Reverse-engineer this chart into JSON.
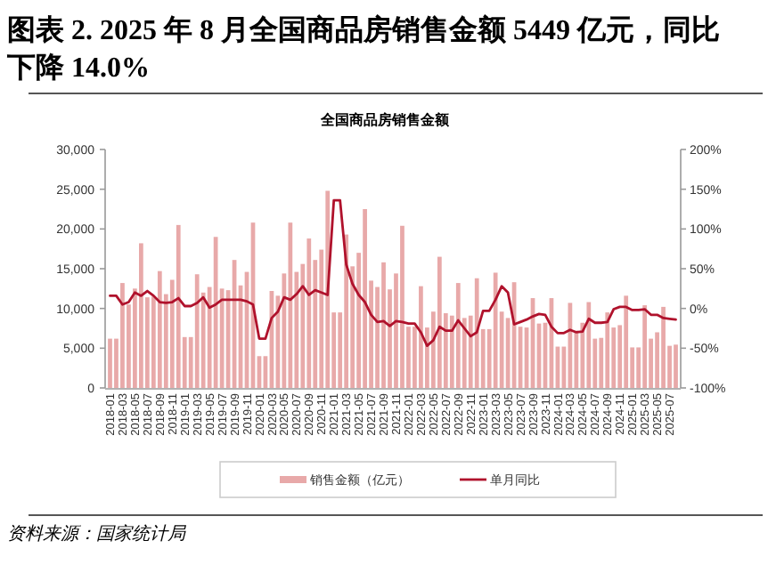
{
  "chart_data": {
    "type": "bar",
    "title": "图表 2. 2025 年 8 月全国商品房销售金额 5449 亿元，同比下降 14.0%",
    "subtitle": "全国商品房销售金额",
    "categories": [
      "2018-01",
      null,
      "2018-03",
      null,
      "2018-05",
      null,
      "2018-07",
      null,
      "2018-09",
      null,
      "2018-11",
      null,
      "2019-01",
      null,
      "2019-03",
      null,
      "2019-05",
      null,
      "2019-07",
      null,
      "2019-09",
      null,
      "2019-11",
      null,
      "2020-01",
      null,
      "2020-03",
      null,
      "2020-05",
      null,
      "2020-07",
      null,
      "2020-09",
      null,
      "2020-11",
      null,
      "2021-01",
      null,
      "2021-03",
      null,
      "2021-05",
      null,
      "2021-07",
      null,
      "2021-09",
      null,
      "2021-11",
      null,
      "2022-01",
      null,
      "2022-03",
      null,
      "2022-05",
      null,
      "2022-07",
      null,
      "2022-09",
      null,
      "2022-11",
      null,
      "2023-01",
      null,
      "2023-03",
      null,
      "2023-05",
      null,
      "2023-07",
      null,
      "2023-09",
      null,
      "2023-11",
      null,
      "2024-01",
      null,
      "2024-03",
      null,
      "2024-05",
      null,
      "2024-07",
      null,
      "2024-09",
      null,
      "2024-11",
      null,
      "2025-01",
      null,
      "2025-03",
      null,
      "2025-05",
      null,
      "2025-07",
      null
    ],
    "series": [
      {
        "name": "销售金额（亿元）",
        "color": "#e8a9a9",
        "values": [
          6200,
          6200,
          13200,
          10500,
          12500,
          18200,
          11400,
          11500,
          14700,
          11800,
          13600,
          20500,
          6400,
          6400,
          14300,
          12000,
          12700,
          19000,
          12500,
          12300,
          16100,
          12900,
          14600,
          20800,
          4000,
          4000,
          12200,
          11600,
          14400,
          20800,
          14600,
          15600,
          18800,
          16100,
          17400,
          24800,
          9500,
          9500,
          19300,
          15300,
          17000,
          22500,
          13500,
          12700,
          15800,
          12400,
          14400,
          20400,
          7700,
          7700,
          12800,
          7600,
          9600,
          16500,
          9400,
          9100,
          13200,
          8800,
          9100,
          13800,
          7400,
          7400,
          14500,
          9600,
          8800,
          13300,
          7700,
          7600,
          11300,
          8100,
          8200,
          11300,
          5200,
          5200,
          10700,
          7200,
          8200,
          10800,
          6200,
          6300,
          9500,
          7600,
          7900,
          11600,
          5100,
          5100,
          10400,
          6200,
          7000,
          10200,
          5300,
          5449
        ]
      },
      {
        "name": "单月同比",
        "type": "line",
        "axis": "y2",
        "color": "#b0122c",
        "values": [
          16,
          16,
          5,
          8,
          20,
          16,
          22,
          16,
          8,
          7,
          8,
          13,
          3,
          3,
          7,
          14,
          1,
          5,
          11,
          11,
          11,
          11,
          9,
          5,
          -38,
          -38,
          -12,
          -4,
          14,
          11,
          18,
          28,
          17,
          23,
          20,
          17,
          136,
          136,
          55,
          31,
          17,
          8,
          -8,
          -17,
          -16,
          -22,
          -16,
          -17,
          -19,
          -19,
          -30,
          -47,
          -40,
          -23,
          -28,
          -28,
          -15,
          -25,
          -35,
          -30,
          -3,
          -3,
          11,
          28,
          20,
          -20,
          -17,
          -14,
          -10,
          -7,
          -8,
          -23,
          -31,
          -31,
          -27,
          -30,
          -29,
          -13,
          -18,
          -18,
          -17,
          -1,
          2,
          2,
          -2,
          -2,
          -1,
          -8,
          -8,
          -12,
          -13,
          -14
        ]
      }
    ],
    "ylim": [
      0,
      30000
    ],
    "yticks": [
      {
        "value": 0,
        "label": "0"
      },
      {
        "value": 5000,
        "label": "5,000"
      },
      {
        "value": 10000,
        "label": "10,000"
      },
      {
        "value": 15000,
        "label": "15,000"
      },
      {
        "value": 20000,
        "label": "20,000"
      },
      {
        "value": 25000,
        "label": "25,000"
      },
      {
        "value": 30000,
        "label": "30,000"
      }
    ],
    "y2lim": [
      -100,
      200
    ],
    "y2ticks": [
      {
        "value": -100,
        "label": "-100%"
      },
      {
        "value": -50,
        "label": "-50%"
      },
      {
        "value": 0,
        "label": "0%"
      },
      {
        "value": 50,
        "label": "50%"
      },
      {
        "value": 100,
        "label": "100%"
      },
      {
        "value": 150,
        "label": "150%"
      },
      {
        "value": 200,
        "label": "200%"
      }
    ],
    "legend": "bottom",
    "grid": false,
    "annotations": [
      "资料来源：国家统计局"
    ]
  }
}
